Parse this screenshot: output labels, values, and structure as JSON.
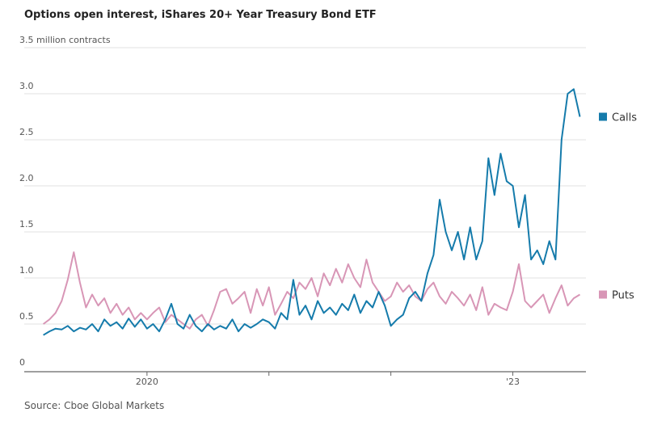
{
  "chart_data": {
    "type": "line",
    "title": "Options open interest, iShares 20+ Year Treasury Bond ETF",
    "source": "Source: Cboe Global Markets",
    "x": [
      2019.15,
      2019.2,
      2019.25,
      2019.3,
      2019.35,
      2019.4,
      2019.45,
      2019.5,
      2019.55,
      2019.6,
      2019.65,
      2019.7,
      2019.75,
      2019.8,
      2019.85,
      2019.9,
      2019.95,
      2020,
      2020.05,
      2020.1,
      2020.15,
      2020.2,
      2020.25,
      2020.3,
      2020.35,
      2020.4,
      2020.45,
      2020.5,
      2020.55,
      2020.6,
      2020.65,
      2020.7,
      2020.75,
      2020.8,
      2020.85,
      2020.9,
      2020.95,
      2021,
      2021.05,
      2021.1,
      2021.15,
      2021.2,
      2021.25,
      2021.3,
      2021.35,
      2021.4,
      2021.45,
      2021.5,
      2021.55,
      2021.6,
      2021.65,
      2021.7,
      2021.75,
      2021.8,
      2021.85,
      2021.9,
      2021.95,
      2022,
      2022.05,
      2022.1,
      2022.15,
      2022.2,
      2022.25,
      2022.3,
      2022.35,
      2022.4,
      2022.45,
      2022.5,
      2022.55,
      2022.6,
      2022.65,
      2022.7,
      2022.75,
      2022.8,
      2022.85,
      2022.9,
      2022.95,
      2023,
      2023.05,
      2023.1,
      2023.15,
      2023.2,
      2023.25,
      2023.3,
      2023.35,
      2023.4,
      2023.45,
      2023.5,
      2023.55
    ],
    "series": [
      {
        "name": "Calls",
        "color": "#157bab",
        "values": [
          0.38,
          0.42,
          0.45,
          0.44,
          0.48,
          0.42,
          0.46,
          0.44,
          0.5,
          0.42,
          0.55,
          0.48,
          0.52,
          0.45,
          0.56,
          0.47,
          0.55,
          0.45,
          0.5,
          0.42,
          0.55,
          0.72,
          0.5,
          0.45,
          0.6,
          0.48,
          0.42,
          0.5,
          0.44,
          0.48,
          0.45,
          0.55,
          0.42,
          0.5,
          0.46,
          0.5,
          0.55,
          0.52,
          0.45,
          0.62,
          0.55,
          0.98,
          0.6,
          0.7,
          0.55,
          0.75,
          0.62,
          0.68,
          0.6,
          0.72,
          0.65,
          0.82,
          0.62,
          0.75,
          0.68,
          0.85,
          0.7,
          0.48,
          0.55,
          0.6,
          0.78,
          0.85,
          0.75,
          1.05,
          1.25,
          1.85,
          1.5,
          1.3,
          1.5,
          1.2,
          1.55,
          1.2,
          1.4,
          2.3,
          1.9,
          2.35,
          2.05,
          2.0,
          1.55,
          1.9,
          1.2,
          1.3,
          1.15,
          1.4,
          1.2,
          2.5,
          3.0,
          3.05,
          2.75
        ]
      },
      {
        "name": "Puts",
        "color": "#d896b6",
        "values": [
          0.5,
          0.55,
          0.62,
          0.75,
          0.98,
          1.28,
          0.95,
          0.68,
          0.82,
          0.7,
          0.78,
          0.62,
          0.72,
          0.6,
          0.68,
          0.55,
          0.62,
          0.55,
          0.62,
          0.68,
          0.52,
          0.6,
          0.55,
          0.5,
          0.45,
          0.55,
          0.6,
          0.48,
          0.65,
          0.85,
          0.88,
          0.72,
          0.78,
          0.85,
          0.62,
          0.88,
          0.7,
          0.9,
          0.6,
          0.72,
          0.85,
          0.78,
          0.95,
          0.88,
          1.0,
          0.8,
          1.05,
          0.92,
          1.1,
          0.95,
          1.15,
          1.0,
          0.9,
          1.2,
          0.95,
          0.85,
          0.75,
          0.8,
          0.95,
          0.85,
          0.92,
          0.8,
          0.75,
          0.88,
          0.95,
          0.8,
          0.72,
          0.85,
          0.78,
          0.7,
          0.82,
          0.65,
          0.9,
          0.6,
          0.72,
          0.68,
          0.65,
          0.85,
          1.15,
          0.75,
          0.68,
          0.75,
          0.82,
          0.62,
          0.78,
          0.92,
          0.7,
          0.78,
          0.82
        ]
      }
    ],
    "xlim": [
      2019,
      2023.6
    ],
    "xticks": [
      2020,
      {
        "value": 2023,
        "label": "'23"
      }
    ],
    "xminorticks": [
      2021,
      2022
    ],
    "ylim": [
      0,
      3.5
    ],
    "yticks": [
      0,
      0.5,
      {
        "value": 1,
        "label": "1.0"
      },
      1.5,
      {
        "value": 2,
        "label": "2.0"
      },
      2.5,
      {
        "value": 3,
        "label": "3.0"
      },
      {
        "value": 3.5,
        "label": "3.5 million contracts"
      }
    ],
    "grid": true
  }
}
